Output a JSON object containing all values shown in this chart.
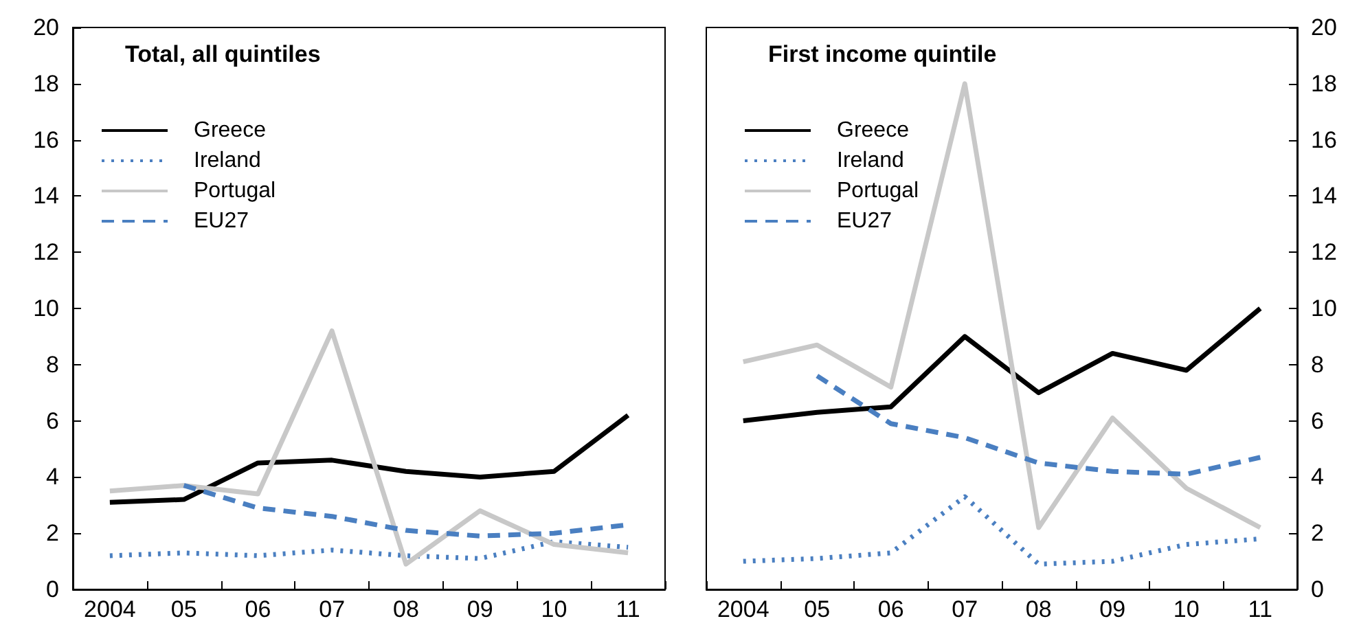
{
  "chart_data": [
    {
      "type": "line",
      "title": "Total, all quintiles",
      "categories": [
        "2004",
        "05",
        "06",
        "07",
        "08",
        "09",
        "10",
        "11"
      ],
      "ylim": [
        0,
        20
      ],
      "yticks": [
        0,
        2,
        4,
        6,
        8,
        10,
        12,
        14,
        16,
        18,
        20
      ],
      "grid": false,
      "legend": "top left",
      "marker": "none",
      "series": [
        {
          "name": "Greece",
          "color": "#000000",
          "line_style": "solid",
          "values": [
            3.1,
            3.2,
            4.5,
            4.6,
            4.2,
            4.0,
            4.2,
            6.2
          ]
        },
        {
          "name": "Ireland",
          "color": "#4a7fc1",
          "line_style": "dotted",
          "values": [
            1.2,
            1.3,
            1.2,
            1.4,
            1.2,
            1.1,
            1.7,
            1.5
          ]
        },
        {
          "name": "Portugal",
          "color": "#c8c8c8",
          "line_style": "solid",
          "values": [
            3.5,
            3.7,
            3.4,
            9.2,
            0.9,
            2.8,
            1.6,
            1.3
          ]
        },
        {
          "name": "EU27",
          "color": "#4a7fc1",
          "line_style": "dashed",
          "values": [
            null,
            3.7,
            2.9,
            2.6,
            2.1,
            1.9,
            2.0,
            2.3
          ]
        }
      ]
    },
    {
      "type": "line",
      "title": "First income quintile",
      "categories": [
        "2004",
        "05",
        "06",
        "07",
        "08",
        "09",
        "10",
        "11"
      ],
      "y2lim": [
        0,
        20
      ],
      "y2ticks": [
        0,
        2,
        4,
        6,
        8,
        10,
        12,
        14,
        16,
        18,
        20
      ],
      "grid": false,
      "legend": "top left",
      "marker": "none",
      "series": [
        {
          "name": "Greece",
          "color": "#000000",
          "line_style": "solid",
          "axis": "y2",
          "values": [
            6.0,
            6.3,
            6.5,
            9.0,
            7.0,
            8.4,
            7.8,
            10.0
          ]
        },
        {
          "name": "Ireland",
          "color": "#4a7fc1",
          "line_style": "dotted",
          "axis": "y2",
          "values": [
            1.0,
            1.1,
            1.3,
            3.3,
            0.9,
            1.0,
            1.6,
            1.8
          ]
        },
        {
          "name": "Portugal",
          "color": "#c8c8c8",
          "line_style": "solid",
          "axis": "y2",
          "values": [
            8.1,
            8.7,
            7.2,
            18.0,
            2.2,
            6.1,
            3.6,
            2.2
          ]
        },
        {
          "name": "EU27",
          "color": "#4a7fc1",
          "line_style": "dashed",
          "axis": "y2",
          "values": [
            null,
            7.6,
            5.9,
            5.4,
            4.5,
            4.2,
            4.1,
            4.7
          ]
        }
      ]
    }
  ]
}
